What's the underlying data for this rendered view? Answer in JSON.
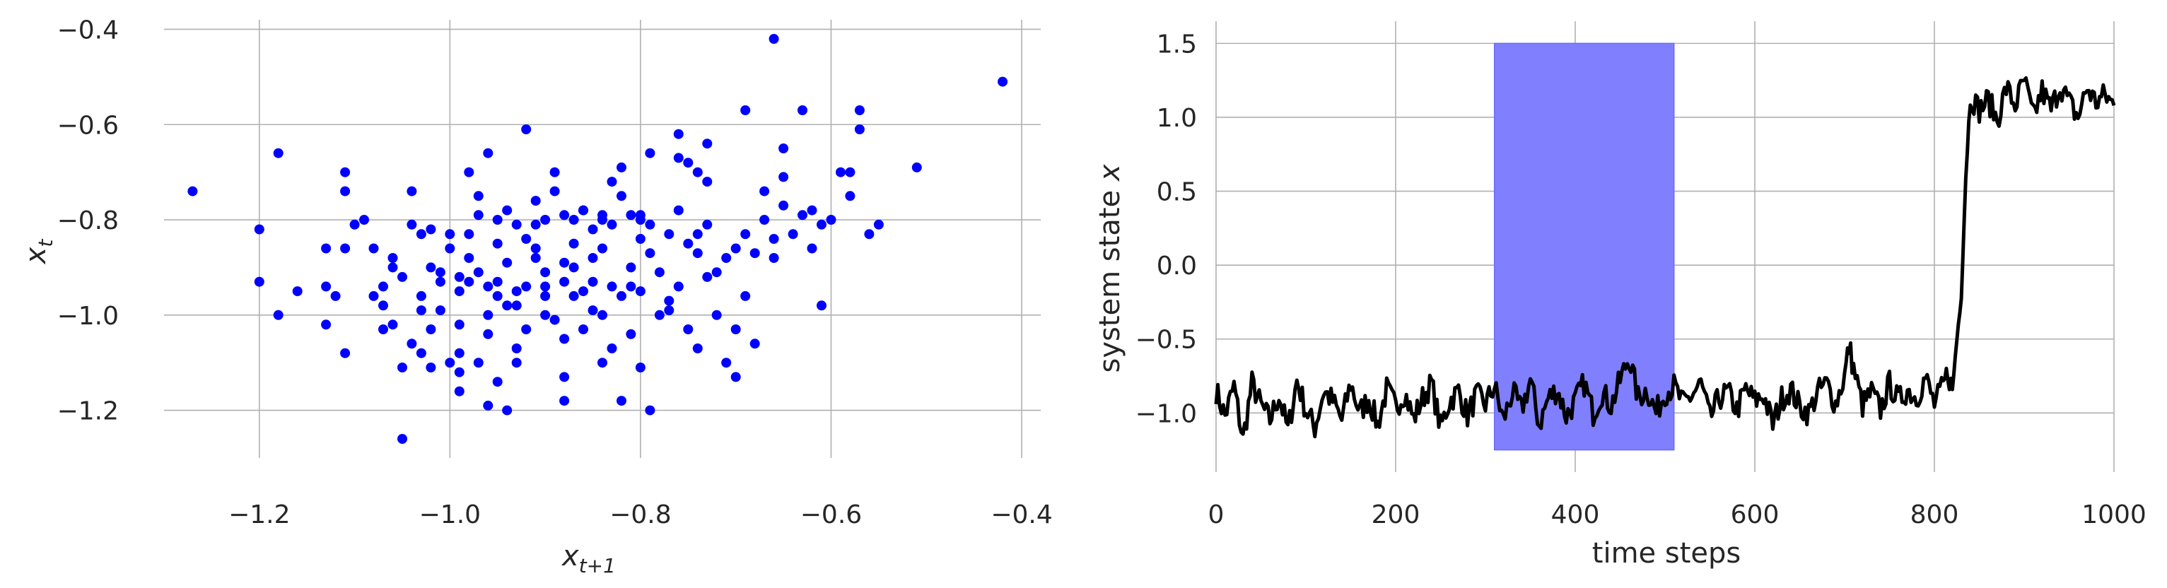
{
  "chart_data": [
    {
      "type": "scatter",
      "xlabel": "x",
      "xlabel_sub": "t+1",
      "ylabel": "x",
      "ylabel_sub": "t",
      "xlim": [
        -1.3,
        -0.38
      ],
      "ylim": [
        -1.3,
        -0.38
      ],
      "xticks": [
        -1.2,
        -1.0,
        -0.8,
        -0.6,
        -0.4
      ],
      "xtick_labels": [
        "−1.2",
        "−1.0",
        "−0.8",
        "−0.6",
        "−0.4"
      ],
      "yticks": [
        -1.2,
        -1.0,
        -0.8,
        -0.6,
        -0.4
      ],
      "ytick_labels": [
        "−1.2",
        "−1.0",
        "−0.8",
        "−0.6",
        "−0.4"
      ],
      "grid": true,
      "color": "#0000ff",
      "points": [
        [
          -1.27,
          -0.74
        ],
        [
          -1.2,
          -0.82
        ],
        [
          -1.2,
          -0.93
        ],
        [
          -1.18,
          -0.66
        ],
        [
          -1.18,
          -1.0
        ],
        [
          -1.16,
          -0.95
        ],
        [
          -1.13,
          -0.86
        ],
        [
          -1.13,
          -0.94
        ],
        [
          -1.13,
          -1.02
        ],
        [
          -1.12,
          -0.96
        ],
        [
          -1.11,
          -0.7
        ],
        [
          -1.11,
          -0.74
        ],
        [
          -1.11,
          -0.86
        ],
        [
          -1.11,
          -1.08
        ],
        [
          -1.1,
          -0.81
        ],
        [
          -1.09,
          -0.8
        ],
        [
          -1.08,
          -0.96
        ],
        [
          -1.08,
          -0.86
        ],
        [
          -1.07,
          -0.94
        ],
        [
          -1.07,
          -0.98
        ],
        [
          -1.06,
          -0.88
        ],
        [
          -1.06,
          -0.9
        ],
        [
          -1.05,
          -0.92
        ],
        [
          -1.05,
          -1.26
        ],
        [
          -1.04,
          -0.81
        ],
        [
          -1.04,
          -0.74
        ],
        [
          -1.03,
          -1.08
        ],
        [
          -1.03,
          -0.96
        ],
        [
          -1.03,
          -0.83
        ],
        [
          -1.02,
          -1.03
        ],
        [
          -1.02,
          -1.11
        ],
        [
          -1.02,
          -0.82
        ],
        [
          -1.01,
          -0.91
        ],
        [
          -1.01,
          -0.99
        ],
        [
          -1.0,
          -1.1
        ],
        [
          -1.0,
          -0.83
        ],
        [
          -0.99,
          -1.02
        ],
        [
          -0.99,
          -1.08
        ],
        [
          -0.99,
          -1.16
        ],
        [
          -0.99,
          -0.92
        ],
        [
          -0.99,
          -0.95
        ],
        [
          -0.98,
          -0.7
        ],
        [
          -0.98,
          -0.93
        ],
        [
          -0.98,
          -0.88
        ],
        [
          -0.97,
          -0.75
        ],
        [
          -0.97,
          -0.91
        ],
        [
          -0.96,
          -0.94
        ],
        [
          -0.96,
          -1.0
        ],
        [
          -0.96,
          -1.04
        ],
        [
          -0.95,
          -1.14
        ],
        [
          -0.95,
          -0.96
        ],
        [
          -0.95,
          -0.93
        ],
        [
          -0.95,
          -0.85
        ],
        [
          -0.94,
          -0.98
        ],
        [
          -0.94,
          -1.2
        ],
        [
          -0.94,
          -0.89
        ],
        [
          -0.93,
          -1.07
        ],
        [
          -0.93,
          -1.1
        ],
        [
          -0.93,
          -0.98
        ],
        [
          -0.93,
          -0.95
        ],
        [
          -0.92,
          -1.03
        ],
        [
          -0.92,
          -0.94
        ],
        [
          -0.92,
          -0.61
        ],
        [
          -0.91,
          -0.76
        ],
        [
          -0.91,
          -0.81
        ],
        [
          -0.91,
          -0.86
        ],
        [
          -0.9,
          -1.0
        ],
        [
          -0.9,
          -0.96
        ],
        [
          -0.9,
          -0.94
        ],
        [
          -0.9,
          -0.8
        ],
        [
          -0.89,
          -0.7
        ],
        [
          -0.89,
          -1.01
        ],
        [
          -0.88,
          -0.89
        ],
        [
          -0.88,
          -0.93
        ],
        [
          -0.88,
          -1.05
        ],
        [
          -0.88,
          -1.13
        ],
        [
          -0.87,
          -0.85
        ],
        [
          -0.87,
          -0.9
        ],
        [
          -0.87,
          -0.96
        ],
        [
          -0.86,
          -0.78
        ],
        [
          -0.86,
          -0.95
        ],
        [
          -0.86,
          -1.03
        ],
        [
          -0.85,
          -0.99
        ],
        [
          -0.85,
          -0.93
        ],
        [
          -0.85,
          -0.88
        ],
        [
          -0.84,
          -0.79
        ],
        [
          -0.84,
          -0.8
        ],
        [
          -0.84,
          -1.0
        ],
        [
          -0.83,
          -0.94
        ],
        [
          -0.83,
          -0.81
        ],
        [
          -0.82,
          -0.96
        ],
        [
          -0.82,
          -0.75
        ],
        [
          -0.82,
          -1.18
        ],
        [
          -0.81,
          -0.94
        ],
        [
          -0.81,
          -0.79
        ],
        [
          -0.8,
          -0.8
        ],
        [
          -0.8,
          -0.79
        ],
        [
          -0.8,
          -0.95
        ],
        [
          -0.79,
          -0.81
        ],
        [
          -0.79,
          -0.87
        ],
        [
          -0.78,
          -0.91
        ],
        [
          -0.78,
          -1.0
        ],
        [
          -0.77,
          -0.99
        ],
        [
          -0.77,
          -0.97
        ],
        [
          -0.77,
          -0.83
        ],
        [
          -0.76,
          -0.62
        ],
        [
          -0.76,
          -0.78
        ],
        [
          -0.76,
          -0.94
        ],
        [
          -0.75,
          -0.68
        ],
        [
          -0.75,
          -0.85
        ],
        [
          -0.75,
          -1.03
        ],
        [
          -0.74,
          -0.87
        ],
        [
          -0.74,
          -1.07
        ],
        [
          -0.74,
          -0.83
        ],
        [
          -0.73,
          -0.72
        ],
        [
          -0.73,
          -0.81
        ],
        [
          -0.73,
          -0.92
        ],
        [
          -0.72,
          -0.91
        ],
        [
          -0.72,
          -1.0
        ],
        [
          -0.71,
          -0.88
        ],
        [
          -0.71,
          -1.1
        ],
        [
          -0.7,
          -0.86
        ],
        [
          -0.7,
          -1.03
        ],
        [
          -0.7,
          -1.13
        ],
        [
          -0.69,
          -0.83
        ],
        [
          -0.69,
          -0.96
        ],
        [
          -0.68,
          -1.06
        ],
        [
          -0.68,
          -0.87
        ],
        [
          -0.67,
          -0.74
        ],
        [
          -0.67,
          -0.8
        ],
        [
          -0.66,
          -0.84
        ],
        [
          -0.66,
          -0.88
        ],
        [
          -0.65,
          -0.65
        ],
        [
          -0.65,
          -0.71
        ],
        [
          -0.65,
          -0.77
        ],
        [
          -0.64,
          -0.83
        ],
        [
          -0.63,
          -0.79
        ],
        [
          -0.63,
          -0.57
        ],
        [
          -0.62,
          -0.78
        ],
        [
          -0.62,
          -0.86
        ],
        [
          -0.61,
          -0.81
        ],
        [
          -0.61,
          -0.98
        ],
        [
          -0.6,
          -0.8
        ],
        [
          -0.59,
          -0.7
        ],
        [
          -0.58,
          -0.7
        ],
        [
          -0.58,
          -0.75
        ],
        [
          -0.57,
          -0.61
        ],
        [
          -0.57,
          -0.57
        ],
        [
          -0.56,
          -0.83
        ],
        [
          -0.55,
          -0.81
        ],
        [
          -0.51,
          -0.69
        ],
        [
          -0.42,
          -0.51
        ],
        [
          -0.66,
          -0.42
        ],
        [
          -0.69,
          -0.57
        ],
        [
          -0.73,
          -0.64
        ],
        [
          -0.74,
          -0.7
        ],
        [
          -0.76,
          -0.67
        ],
        [
          -0.79,
          -0.66
        ],
        [
          -0.8,
          -0.84
        ],
        [
          -0.81,
          -0.9
        ],
        [
          -0.82,
          -0.69
        ],
        [
          -0.83,
          -0.72
        ],
        [
          -0.84,
          -0.86
        ],
        [
          -0.85,
          -0.82
        ],
        [
          -0.86,
          -0.78
        ],
        [
          -0.87,
          -0.8
        ],
        [
          -0.88,
          -0.79
        ],
        [
          -0.89,
          -0.74
        ],
        [
          -0.9,
          -0.91
        ],
        [
          -0.91,
          -0.88
        ],
        [
          -0.92,
          -0.84
        ],
        [
          -0.93,
          -0.81
        ],
        [
          -0.94,
          -0.78
        ],
        [
          -0.95,
          -0.8
        ],
        [
          -0.96,
          -0.66
        ],
        [
          -0.97,
          -0.79
        ],
        [
          -0.98,
          -0.83
        ],
        [
          -1.0,
          -0.86
        ],
        [
          -1.01,
          -0.93
        ],
        [
          -1.02,
          -0.9
        ],
        [
          -1.03,
          -0.99
        ],
        [
          -1.04,
          -1.06
        ],
        [
          -1.05,
          -1.11
        ],
        [
          -1.06,
          -1.02
        ],
        [
          -1.07,
          -1.03
        ],
        [
          -0.96,
          -1.19
        ],
        [
          -0.88,
          -1.18
        ],
        [
          -0.79,
          -1.2
        ],
        [
          -0.8,
          -1.11
        ],
        [
          -0.83,
          -1.07
        ],
        [
          -0.84,
          -1.1
        ],
        [
          -0.81,
          -1.04
        ],
        [
          -0.97,
          -1.1
        ],
        [
          -0.99,
          -1.12
        ]
      ]
    },
    {
      "type": "line",
      "xlabel": "time steps",
      "ylabel": "system state ",
      "ylabel_var": "x",
      "xlim": [
        0,
        1000
      ],
      "ylim": [
        -1.4,
        1.65
      ],
      "xticks": [
        0,
        200,
        400,
        600,
        800,
        1000
      ],
      "xtick_labels": [
        "0",
        "200",
        "400",
        "600",
        "800",
        "1000"
      ],
      "yticks": [
        -1.0,
        -0.5,
        0.0,
        0.5,
        1.0,
        1.5
      ],
      "ytick_labels": [
        "−1.0",
        "−0.5",
        "0.0",
        "0.5",
        "1.0",
        "1.5"
      ],
      "grid": true,
      "line_color": "#000000",
      "highlight": {
        "x0": 310,
        "x1": 510,
        "y0": -1.25,
        "y1": 1.5,
        "color": "#8080ff"
      },
      "x": [
        0,
        10,
        20,
        30,
        40,
        50,
        60,
        70,
        80,
        90,
        100,
        110,
        120,
        130,
        140,
        150,
        160,
        170,
        180,
        190,
        200,
        210,
        220,
        230,
        240,
        250,
        260,
        270,
        280,
        290,
        300,
        310,
        320,
        330,
        340,
        350,
        360,
        370,
        380,
        390,
        400,
        410,
        420,
        430,
        440,
        450,
        460,
        470,
        480,
        490,
        500,
        510,
        520,
        530,
        540,
        550,
        560,
        570,
        580,
        590,
        600,
        610,
        620,
        630,
        640,
        650,
        660,
        670,
        680,
        690,
        700,
        705,
        710,
        720,
        730,
        740,
        750,
        760,
        770,
        780,
        790,
        800,
        810,
        815,
        820,
        825,
        830,
        835,
        840,
        850,
        860,
        870,
        880,
        890,
        900,
        910,
        920,
        930,
        940,
        950,
        960,
        970,
        980,
        990,
        1000
      ],
      "y": [
        -0.85,
        -1.02,
        -0.82,
        -1.18,
        -0.8,
        -0.95,
        -1.05,
        -0.88,
        -1.12,
        -0.78,
        -0.98,
        -1.1,
        -0.85,
        -0.92,
        -1.05,
        -0.8,
        -1.0,
        -0.9,
        -1.08,
        -0.84,
        -0.96,
        -0.86,
        -1.04,
        -0.9,
        -0.8,
        -1.1,
        -0.92,
        -0.85,
        -1.02,
        -0.88,
        -0.94,
        -0.82,
        -1.05,
        -0.86,
        -0.98,
        -0.78,
        -1.08,
        -0.9,
        -0.84,
        -1.02,
        -0.92,
        -0.8,
        -1.0,
        -0.86,
        -0.95,
        -0.78,
        -0.62,
        -0.9,
        -0.84,
        -1.0,
        -0.86,
        -0.82,
        -0.94,
        -0.88,
        -0.8,
        -1.04,
        -0.9,
        -0.86,
        -0.98,
        -0.84,
        -0.92,
        -0.88,
        -1.08,
        -0.9,
        -0.84,
        -0.96,
        -1.0,
        -0.86,
        -0.8,
        -0.94,
        -0.75,
        -0.55,
        -0.7,
        -0.95,
        -0.86,
        -0.98,
        -0.8,
        -0.92,
        -0.84,
        -0.9,
        -0.76,
        -0.94,
        -0.82,
        -0.72,
        -0.85,
        -0.5,
        -0.2,
        0.6,
        1.15,
        1.05,
        1.12,
        0.98,
        1.2,
        1.08,
        1.25,
        1.0,
        1.18,
        1.05,
        1.22,
        1.1,
        1.0,
        1.2,
        1.1,
        1.15,
        1.08
      ]
    }
  ]
}
